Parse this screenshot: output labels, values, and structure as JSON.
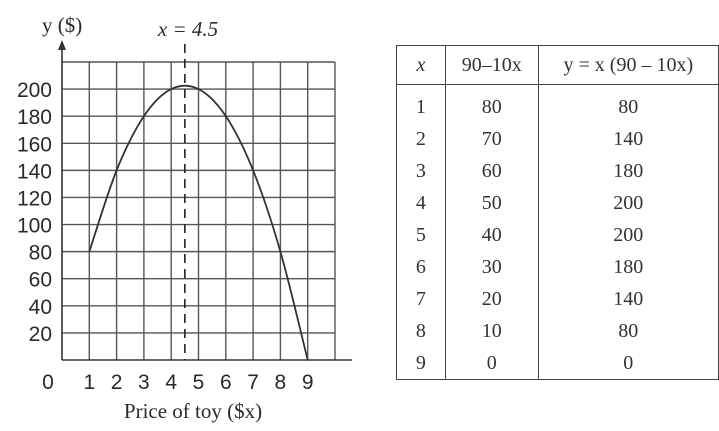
{
  "chart_data": {
    "type": "line",
    "ylabel": "y ($)",
    "xlabel": "Price of toy ($x)",
    "annotation": "x = 4.5",
    "annotation_x": 4.5,
    "x_ticks": [
      "0",
      "1",
      "2",
      "3",
      "4",
      "5",
      "6",
      "7",
      "8",
      "9"
    ],
    "y_ticks": [
      "20",
      "40",
      "60",
      "80",
      "100",
      "120",
      "140",
      "160",
      "180",
      "200"
    ],
    "xlim": [
      0,
      10
    ],
    "ylim": [
      0,
      220
    ],
    "grid": true,
    "series": [
      {
        "x": [
          1,
          2,
          3,
          4,
          5,
          6,
          7,
          8,
          9
        ],
        "y": [
          80,
          140,
          180,
          200,
          200,
          180,
          140,
          80,
          0
        ]
      }
    ]
  },
  "table": {
    "headers": [
      "x",
      "90–10x",
      "y = x (90 – 10x)"
    ],
    "rows": [
      [
        "1",
        "80",
        "80"
      ],
      [
        "2",
        "70",
        "140"
      ],
      [
        "3",
        "60",
        "180"
      ],
      [
        "4",
        "50",
        "200"
      ],
      [
        "5",
        "40",
        "200"
      ],
      [
        "6",
        "30",
        "180"
      ],
      [
        "7",
        "20",
        "140"
      ],
      [
        "8",
        "10",
        "80"
      ],
      [
        "9",
        "0",
        "0"
      ]
    ]
  }
}
